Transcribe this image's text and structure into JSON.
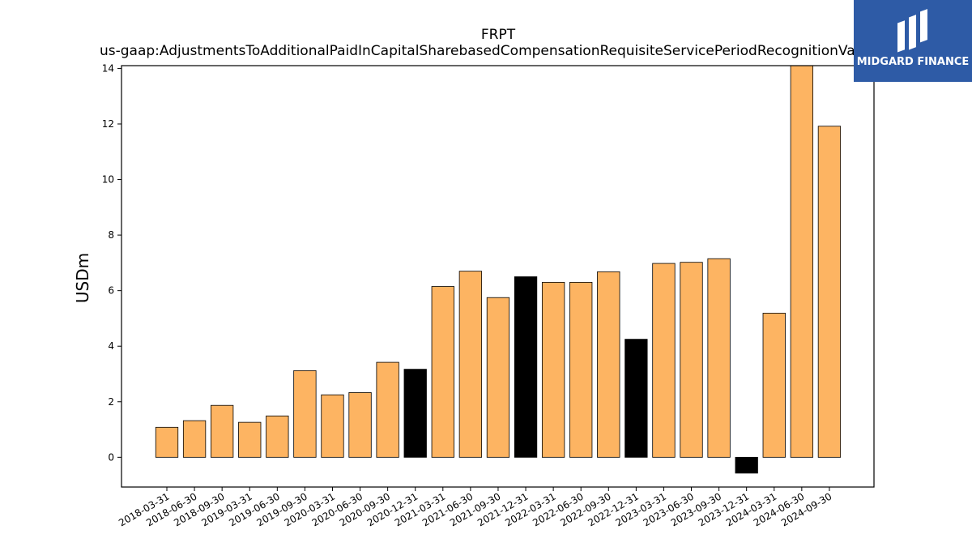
{
  "logo": {
    "text": "MIDGARD FINANCE",
    "icon": "midgard-logo-icon",
    "bg_color": "#2e5ba6"
  },
  "chart_data": {
    "type": "bar",
    "title": "FRPT",
    "subtitle": "us-gaap:AdjustmentsToAdditionalPaidInCapitalSharebasedCompensationRequisiteServicePeriodRecognitionValue",
    "xlabel": "",
    "ylabel": "USDm",
    "ylim": [
      -1.07,
      14.1
    ],
    "yticks": [
      0,
      2,
      4,
      6,
      8,
      10,
      12,
      14
    ],
    "grid": false,
    "categories": [
      "2018-03-31",
      "2018-06-30",
      "2018-09-30",
      "2019-03-31",
      "2019-06-30",
      "2019-09-30",
      "2020-03-31",
      "2020-06-30",
      "2020-09-30",
      "2020-12-31",
      "2021-03-31",
      "2021-06-30",
      "2021-09-30",
      "2021-12-31",
      "2022-03-31",
      "2022-06-30",
      "2022-09-30",
      "2022-12-31",
      "2023-03-31",
      "2023-06-30",
      "2023-09-30",
      "2023-12-31",
      "2024-03-31",
      "2024-06-30",
      "2024-09-30"
    ],
    "values": [
      1.08,
      1.32,
      1.87,
      1.26,
      1.49,
      3.12,
      2.25,
      2.33,
      3.42,
      3.17,
      6.15,
      6.7,
      5.75,
      6.5,
      6.3,
      6.3,
      6.68,
      4.25,
      6.98,
      7.02,
      7.15,
      -0.57,
      5.19,
      14.1,
      11.92
    ],
    "highlight": [
      false,
      false,
      false,
      false,
      false,
      false,
      false,
      false,
      false,
      true,
      false,
      false,
      false,
      true,
      false,
      false,
      false,
      true,
      false,
      false,
      false,
      true,
      false,
      false,
      false
    ],
    "colors": {
      "bar": "#fdb462",
      "highlight": "#000000",
      "edge": "#000000"
    }
  }
}
